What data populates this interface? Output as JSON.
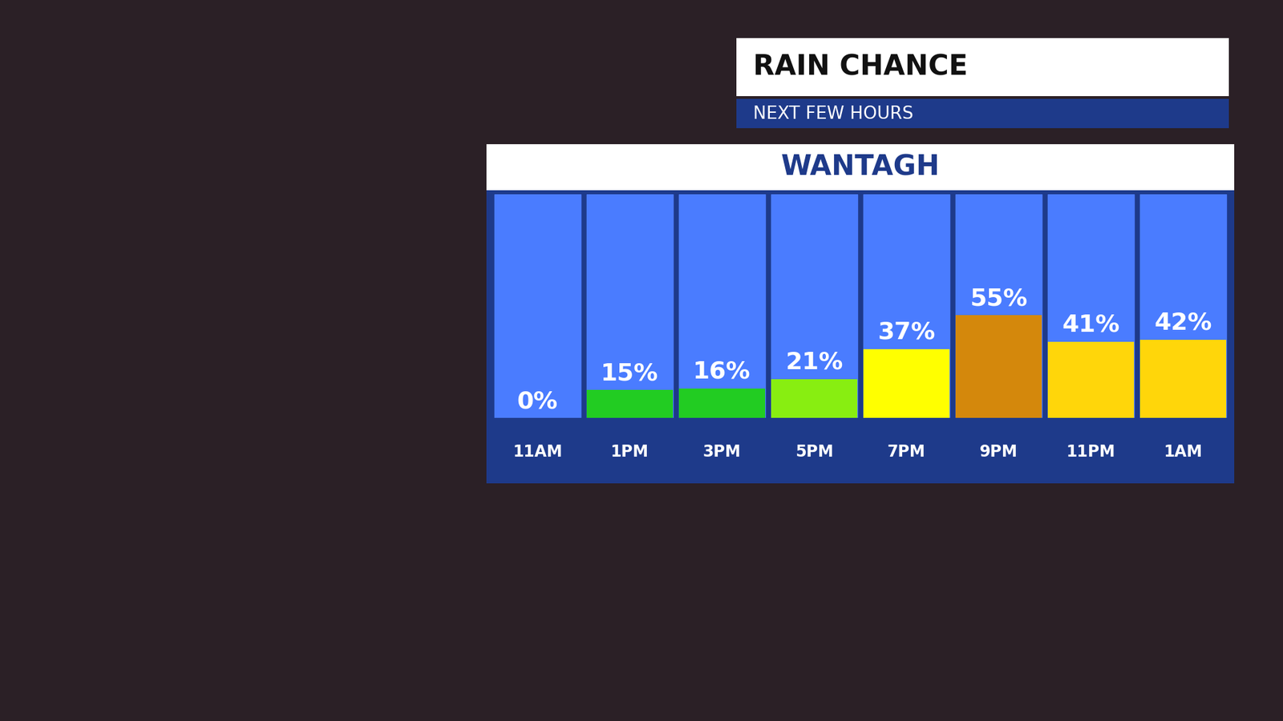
{
  "chart_data": {
    "type": "bar",
    "title": "RAIN CHANCE",
    "subtitle": "NEXT FEW HOURS",
    "location": "WANTAGH",
    "categories": [
      "11AM",
      "1PM",
      "3PM",
      "5PM",
      "7PM",
      "9PM",
      "11PM",
      "1AM"
    ],
    "values": [
      0,
      15,
      16,
      21,
      37,
      55,
      41,
      42
    ],
    "value_labels": [
      "0%",
      "15%",
      "16%",
      "21%",
      "37%",
      "55%",
      "41%",
      "42%"
    ],
    "colors": [
      "#ffffff",
      "#22cc22",
      "#22cc22",
      "#88ee11",
      "#ffff00",
      "#d4880c",
      "#ffd60a",
      "#ffd60a"
    ],
    "ylim": [
      0,
      120
    ],
    "yticks": [],
    "grid": false,
    "data_labels": true,
    "tick_labels": "x"
  }
}
